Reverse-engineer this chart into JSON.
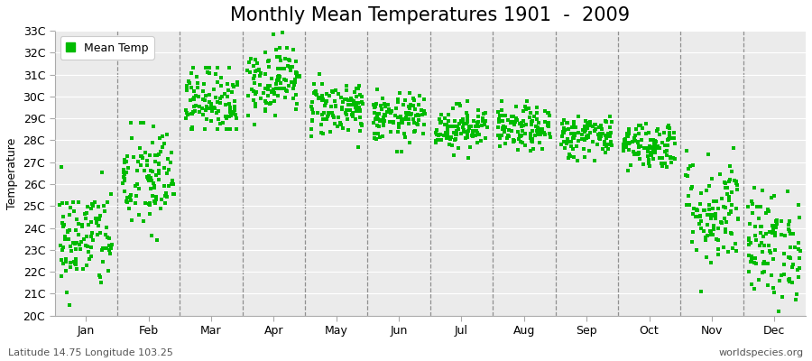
{
  "title": "Monthly Mean Temperatures 1901  -  2009",
  "ylabel": "Temperature",
  "subtitle": "Latitude 14.75 Longitude 103.25",
  "watermark": "worldspecies.org",
  "legend_label": "Mean Temp",
  "marker_color": "#00BB00",
  "background_color": "#EBEBEB",
  "ylim": [
    20,
    33
  ],
  "yticks": [
    20,
    21,
    22,
    23,
    24,
    25,
    26,
    27,
    28,
    29,
    30,
    31,
    32,
    33
  ],
  "ytick_labels": [
    "20C",
    "21C",
    "22C",
    "23C",
    "24C",
    "25C",
    "26C",
    "27C",
    "28C",
    "29C",
    "30C",
    "31C",
    "32C",
    "33C"
  ],
  "months": [
    "Jan",
    "Feb",
    "Mar",
    "Apr",
    "May",
    "Jun",
    "Jul",
    "Aug",
    "Sep",
    "Oct",
    "Nov",
    "Dec"
  ],
  "month_means": [
    23.5,
    26.2,
    29.8,
    30.8,
    29.5,
    29.0,
    28.6,
    28.5,
    28.2,
    27.8,
    24.8,
    23.2
  ],
  "month_stds": [
    1.2,
    1.3,
    0.8,
    0.8,
    0.65,
    0.55,
    0.5,
    0.5,
    0.5,
    0.55,
    1.3,
    1.25
  ],
  "month_mins": [
    20.8,
    22.8,
    28.8,
    29.0,
    28.0,
    27.8,
    27.5,
    27.3,
    27.1,
    26.8,
    21.0,
    20.5
  ],
  "month_maxs": [
    27.8,
    28.5,
    31.0,
    32.7,
    31.0,
    30.2,
    29.5,
    29.5,
    29.2,
    29.2,
    28.2,
    27.0
  ],
  "n_years": 109,
  "title_fontsize": 15,
  "axis_fontsize": 9,
  "tick_fontsize": 9,
  "marker_size": 3.5
}
